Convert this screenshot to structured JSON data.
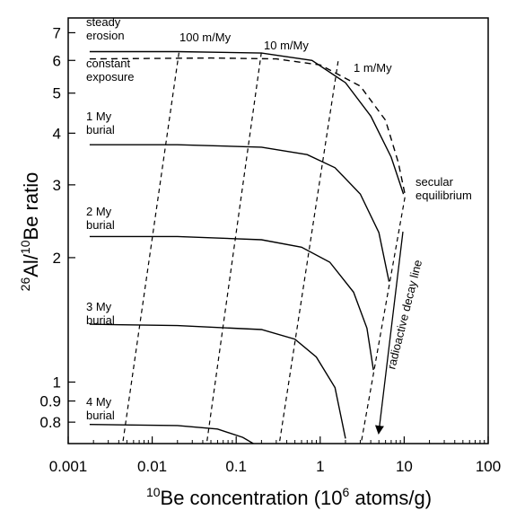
{
  "chart_data": {
    "type": "line",
    "xlabel": {
      "sup": "10",
      "main": "Be concentration (10",
      "unit_sup": "6",
      "unit": " atoms/g)"
    },
    "ylabel": {
      "sup": "26",
      "main": "Al/",
      "sup2": "10",
      "main2": "Be ratio"
    },
    "x_scale": "log",
    "y_scale": "log",
    "xlim": [
      0.001,
      100
    ],
    "ylim": [
      0.71,
      7.6
    ],
    "x_ticks": [
      {
        "value": 0.001,
        "label": "0.001"
      },
      {
        "value": 0.01,
        "label": "0.01"
      },
      {
        "value": 0.1,
        "label": "0.1"
      },
      {
        "value": 1,
        "label": "1"
      },
      {
        "value": 10,
        "label": "10"
      },
      {
        "value": 100,
        "label": "100"
      }
    ],
    "y_ticks": [
      {
        "value": 0.8,
        "label": "0.8"
      },
      {
        "value": 0.9,
        "label": "0.9"
      },
      {
        "value": 1,
        "label": "1"
      },
      {
        "value": 2,
        "label": "2"
      },
      {
        "value": 3,
        "label": "3"
      },
      {
        "value": 4,
        "label": "4"
      },
      {
        "value": 5,
        "label": "5"
      },
      {
        "value": 6,
        "label": "6"
      },
      {
        "value": 7,
        "label": "7"
      }
    ],
    "series": [
      {
        "name": "steady erosion",
        "style": "solid",
        "points": [
          [
            0.0018,
            6.3
          ],
          [
            0.02,
            6.3
          ],
          [
            0.2,
            6.25
          ],
          [
            0.8,
            6.0
          ],
          [
            2,
            5.3
          ],
          [
            4,
            4.4
          ],
          [
            7,
            3.5
          ],
          [
            9.8,
            2.85
          ]
        ]
      },
      {
        "name": "constant exposure",
        "style": "dashed",
        "points": [
          [
            0.0018,
            6.05
          ],
          [
            0.05,
            6.08
          ],
          [
            0.3,
            6.05
          ],
          [
            1,
            5.85
          ],
          [
            3,
            5.2
          ],
          [
            6,
            4.3
          ],
          [
            8.5,
            3.4
          ],
          [
            10.2,
            2.85
          ]
        ]
      },
      {
        "name": "1 My burial",
        "style": "solid",
        "points": [
          [
            0.0018,
            3.75
          ],
          [
            0.02,
            3.75
          ],
          [
            0.2,
            3.7
          ],
          [
            0.7,
            3.55
          ],
          [
            1.5,
            3.3
          ],
          [
            3,
            2.85
          ],
          [
            5,
            2.3
          ],
          [
            6.6,
            1.75
          ]
        ]
      },
      {
        "name": "2 My burial",
        "style": "solid",
        "points": [
          [
            0.0018,
            2.25
          ],
          [
            0.02,
            2.25
          ],
          [
            0.2,
            2.21
          ],
          [
            0.6,
            2.12
          ],
          [
            1.3,
            1.95
          ],
          [
            2.5,
            1.65
          ],
          [
            3.6,
            1.35
          ],
          [
            4.3,
            1.07
          ]
        ]
      },
      {
        "name": "3 My burial",
        "style": "solid",
        "points": [
          [
            0.0018,
            1.38
          ],
          [
            0.02,
            1.37
          ],
          [
            0.2,
            1.34
          ],
          [
            0.5,
            1.27
          ],
          [
            0.9,
            1.15
          ],
          [
            1.5,
            0.97
          ],
          [
            2.0,
            0.73
          ]
        ]
      },
      {
        "name": "4 My burial",
        "style": "solid",
        "points": [
          [
            0.0018,
            0.79
          ],
          [
            0.02,
            0.785
          ],
          [
            0.06,
            0.77
          ],
          [
            0.12,
            0.735
          ],
          [
            0.16,
            0.71
          ]
        ]
      }
    ],
    "erosion_lines": [
      {
        "label": "100 m/My",
        "points": [
          [
            0.0045,
            0.72
          ],
          [
            0.021,
            6.35
          ]
        ]
      },
      {
        "label": "10 m/My",
        "points": [
          [
            0.045,
            0.72
          ],
          [
            0.2,
            6.3
          ]
        ]
      },
      {
        "label": "1 m/My",
        "points": [
          [
            0.33,
            0.72
          ],
          [
            1.65,
            6.05
          ]
        ]
      }
    ],
    "decay_line": {
      "label": "radioactive decay line",
      "points": [
        [
          10.2,
          2.8
        ],
        [
          3.1,
          0.72
        ]
      ]
    },
    "annotations": {
      "steady_erosion": [
        "steady",
        "erosion"
      ],
      "constant_exposure": [
        "constant",
        "exposure"
      ],
      "burial_1": [
        "1 My",
        "burial"
      ],
      "burial_2": [
        "2 My",
        "burial"
      ],
      "burial_3": [
        "3 My",
        "burial"
      ],
      "burial_4": [
        "4 My",
        "burial"
      ],
      "secular": [
        "secular",
        "equilibrium"
      ],
      "rate_100": "100 m/My",
      "rate_10": "10 m/My",
      "rate_1": "1 m/My",
      "decay": "radioactive decay line"
    },
    "colors": {
      "line": "#000000",
      "background": "#ffffff"
    }
  }
}
